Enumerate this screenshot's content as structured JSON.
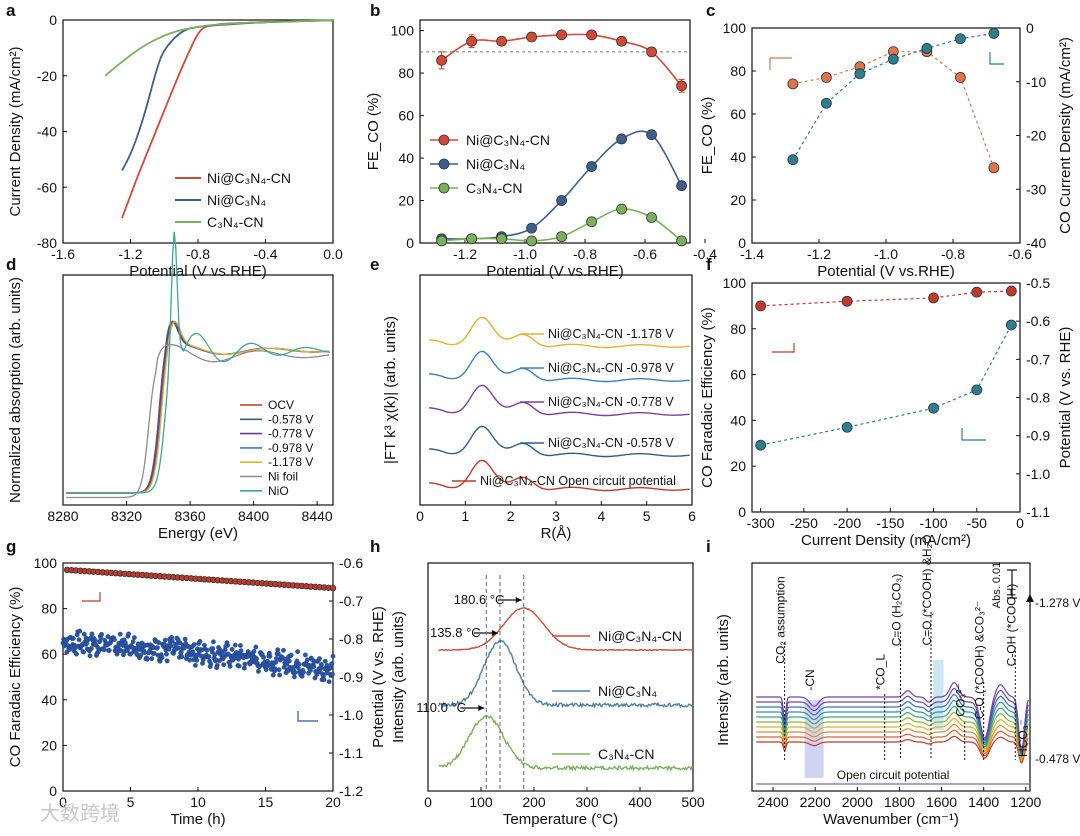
{
  "watermark": "大数跨境",
  "chart_data": [
    {
      "panel": "a",
      "type": "line",
      "xlabel": "Potential (V vs.RHE)",
      "ylabel": "Current Density (mA/cm²)",
      "xlim": [
        -1.6,
        0.0
      ],
      "ylim": [
        -80,
        0
      ],
      "xticks": [
        -1.6,
        -1.2,
        -0.8,
        -0.4,
        0.0
      ],
      "yticks": [
        0,
        -20,
        -40,
        -60,
        -80
      ],
      "xtick_labels": [
        "-1.6",
        "-1.2",
        "-0.8",
        "-0.4",
        "0.0"
      ],
      "ytick_labels": [
        "0",
        "-20",
        "-40",
        "-60",
        "-80"
      ],
      "legend_position": "bottom-right",
      "series": [
        {
          "name": "Ni@C₃N₄-CN",
          "color": "#d04a35",
          "x": [
            -1.25,
            -1.15,
            -1.05,
            -0.95,
            -0.85,
            -0.78,
            -0.7,
            -0.6,
            -0.4,
            -0.2,
            0.0
          ],
          "y": [
            -71,
            -55,
            -40,
            -25,
            -11,
            -3.5,
            -1.8,
            -1.2,
            -0.8,
            -0.4,
            -0.1
          ]
        },
        {
          "name": "Ni@C₃N₄",
          "color": "#3a5f8f",
          "x": [
            -1.25,
            -1.2,
            -1.15,
            -1.1,
            -1.05,
            -1.0,
            -0.9,
            -0.8,
            -0.6,
            -0.4,
            0.0
          ],
          "y": [
            -54,
            -48,
            -40,
            -30,
            -19,
            -11,
            -4.5,
            -2.5,
            -1.5,
            -0.8,
            -0.1
          ]
        },
        {
          "name": "C₃N₄-CN",
          "color": "#7ab05a",
          "x": [
            -1.35,
            -1.25,
            -1.15,
            -1.05,
            -0.95,
            -0.85,
            -0.75,
            -0.6,
            -0.4,
            0.0
          ],
          "y": [
            -20,
            -15,
            -10.5,
            -7,
            -4.5,
            -3,
            -2,
            -1.3,
            -0.7,
            -0.1
          ]
        }
      ]
    },
    {
      "panel": "b",
      "type": "line",
      "xlabel": "Potential (V vs.RHE)",
      "ylabel": "FE_CO (%)",
      "xlim": [
        -1.35,
        -0.45
      ],
      "ylim": [
        0,
        105
      ],
      "xticks": [
        -1.2,
        -1.0,
        -0.8,
        -0.6,
        -0.4
      ],
      "yticks": [
        0,
        20,
        40,
        60,
        80,
        100
      ],
      "xtick_labels": [
        "-1.2",
        "-1.0",
        "-0.8",
        "-0.6",
        "-0.4"
      ],
      "ytick_labels": [
        "0",
        "20",
        "40",
        "60",
        "80",
        "100"
      ],
      "reference_line_y": 90,
      "legend_position": "center-left",
      "categories": [
        -1.278,
        -1.178,
        -1.078,
        -0.978,
        -0.878,
        -0.778,
        -0.678,
        -0.578,
        -0.478
      ],
      "series": [
        {
          "name": "Ni@C₃N₄-CN",
          "color": "#d04a35",
          "values": [
            86,
            95,
            95,
            97,
            98,
            98,
            95,
            90,
            74
          ],
          "errors": [
            4,
            3,
            2,
            2,
            1,
            2,
            2,
            2,
            3
          ]
        },
        {
          "name": "Ni@C₃N₄",
          "color": "#3a5f8f",
          "values": [
            2,
            2,
            3,
            7,
            20,
            36,
            49,
            51,
            27
          ],
          "errors": [
            0.5,
            0.5,
            1,
            1,
            2,
            2,
            2,
            2,
            2
          ]
        },
        {
          "name": "C₃N₄-CN",
          "color": "#7ab05a",
          "values": [
            1,
            2,
            2,
            1,
            3,
            10,
            16,
            12,
            1
          ],
          "errors": [
            0.5,
            0.5,
            0.5,
            0.5,
            1,
            1,
            2,
            1,
            0.5
          ]
        }
      ]
    },
    {
      "panel": "c",
      "type": "scatter",
      "xlabel": "Potential (V vs.RHE)",
      "ylabel": "FE_CO (%)",
      "ylabel_right": "CO Current Density (mA/cm²)",
      "xlim": [
        -1.4,
        -0.6
      ],
      "ylim": [
        0,
        100
      ],
      "ylim_right": [
        -40,
        0
      ],
      "xticks": [
        -1.4,
        -1.2,
        -1.0,
        -0.8,
        -0.6
      ],
      "yticks": [
        0,
        20,
        40,
        60,
        80,
        100
      ],
      "yticks_right": [
        0,
        -10,
        -20,
        -30,
        -40
      ],
      "xtick_labels": [
        "-1.4",
        "-1.2",
        "-1.0",
        "-0.8",
        "-0.6"
      ],
      "ytick_labels": [
        "0",
        "20",
        "40",
        "60",
        "80",
        "100"
      ],
      "ytick_labels_right": [
        "0",
        "-10",
        "-20",
        "-30",
        "-40"
      ],
      "series": [
        {
          "name": "FE_CO",
          "axis": "left",
          "color": "#e0744e",
          "x": [
            -1.278,
            -1.178,
            -1.078,
            -0.978,
            -0.878,
            -0.778,
            -0.678
          ],
          "y": [
            74,
            77,
            82,
            89,
            89,
            77,
            35
          ]
        },
        {
          "name": "CO Current Density",
          "axis": "right",
          "color": "#2d7f8f",
          "x": [
            -1.278,
            -1.178,
            -1.078,
            -0.978,
            -0.878,
            -0.778,
            -0.678
          ],
          "y": [
            -24.5,
            -14,
            -8.5,
            -5.8,
            -3.8,
            -2,
            -1
          ]
        }
      ]
    },
    {
      "panel": "d",
      "type": "line",
      "xlabel": "Energy (eV)",
      "ylabel": "Normalized absorption (arb. units)",
      "xlim": [
        8280,
        8450
      ],
      "xticks": [
        8280,
        8320,
        8360,
        8400,
        8440
      ],
      "xtick_labels": [
        "8280",
        "8320",
        "8360",
        "8400",
        "8440"
      ],
      "legend_position": "bottom-right",
      "series": [
        {
          "name": "OCV",
          "color": "#c0392b"
        },
        {
          "name": "-0.578 V",
          "color": "#2e5d8c"
        },
        {
          "name": "-0.778 V",
          "color": "#6a3d9a"
        },
        {
          "name": "-0.978 V",
          "color": "#4a74b8"
        },
        {
          "name": "-1.178 V",
          "color": "#e6b22e"
        },
        {
          "name": "Ni foil",
          "color": "#8c8c8c"
        },
        {
          "name": "NiO",
          "color": "#3aa6a0"
        }
      ]
    },
    {
      "panel": "e",
      "type": "line",
      "xlabel": "R(Å)",
      "ylabel": "|FT k³ χ(k)| (arb. units)",
      "xlim": [
        0,
        6
      ],
      "xticks": [
        0,
        1,
        2,
        3,
        4,
        5,
        6
      ],
      "xtick_labels": [
        "0",
        "1",
        "2",
        "3",
        "4",
        "5",
        "6"
      ],
      "series": [
        {
          "name": "Ni@C₃N₄-CN  -1.178 V",
          "color": "#e6b22e"
        },
        {
          "name": "Ni@C₃N₄-CN  -0.978 V",
          "color": "#3f7fbf"
        },
        {
          "name": "Ni@C₃N₄-CN  -0.778 V",
          "color": "#7b3f9e"
        },
        {
          "name": "Ni@C₃N₄-CN  -0.578 V",
          "color": "#2e5d8c"
        },
        {
          "name": "Ni@C₃N₄-CN  Open circuit potential",
          "color": "#c0392b"
        }
      ]
    },
    {
      "panel": "f",
      "type": "scatter",
      "xlabel": "Current Density (mA/cm²)",
      "ylabel": "CO Faradaic Efficiency (%)",
      "ylabel_right": "Potential (V vs. RHE)",
      "xlim": [
        -310,
        0
      ],
      "ylim": [
        0,
        100
      ],
      "ylim_right": [
        -1.1,
        -0.5
      ],
      "xticks": [
        -300,
        -250,
        -200,
        -150,
        -100,
        -50,
        0
      ],
      "yticks": [
        0,
        20,
        40,
        60,
        80,
        100
      ],
      "yticks_right": [
        -0.5,
        -0.6,
        -0.7,
        -0.8,
        -0.9,
        -1.0,
        -1.1
      ],
      "xtick_labels": [
        "-300",
        "-250",
        "-200",
        "-150",
        "-100",
        "-50",
        "0"
      ],
      "ytick_labels": [
        "0",
        "20",
        "40",
        "60",
        "80",
        "100"
      ],
      "ytick_labels_right": [
        "-0.5",
        "-0.6",
        "-0.7",
        "-0.8",
        "-0.9",
        "-1.0",
        "-1.1"
      ],
      "series": [
        {
          "name": "CO Faradaic Efficiency",
          "axis": "left",
          "color": "#c0392b",
          "x": [
            -300,
            -200,
            -100,
            -50,
            -10
          ],
          "y": [
            90,
            92,
            93.5,
            96,
            96.5
          ]
        },
        {
          "name": "Potential",
          "axis": "right",
          "color": "#2d7f8f",
          "x": [
            -300,
            -200,
            -100,
            -50,
            -10
          ],
          "y": [
            -0.925,
            -0.878,
            -0.828,
            -0.78,
            -0.61
          ]
        }
      ]
    },
    {
      "panel": "g",
      "type": "scatter",
      "xlabel": "Time (h)",
      "ylabel": "CO Faradaic Efficiency (%)",
      "ylabel_right": "Potential (V vs. RHE)",
      "xlim": [
        0,
        20
      ],
      "ylim": [
        0,
        100
      ],
      "ylim_right": [
        -1.2,
        -0.6
      ],
      "xticks": [
        0,
        5,
        10,
        15,
        20
      ],
      "yticks": [
        0,
        20,
        40,
        60,
        80,
        100
      ],
      "yticks_right": [
        -0.6,
        -0.7,
        -0.8,
        -0.9,
        -1.0,
        -1.1,
        -1.2
      ],
      "xtick_labels": [
        "0",
        "5",
        "10",
        "15",
        "20"
      ],
      "ytick_labels": [
        "0",
        "20",
        "40",
        "60",
        "80",
        "100"
      ],
      "ytick_labels_right": [
        "-0.6",
        "-0.7",
        "-0.8",
        "-0.9",
        "-1.0",
        "-1.1",
        "-1.2"
      ],
      "series": [
        {
          "name": "CO Faradaic Efficiency",
          "axis": "left",
          "color": "#c0392b",
          "x_start": 0.3,
          "x_end": 20,
          "y_start": 97,
          "y_end": 89
        },
        {
          "name": "Potential",
          "axis": "right",
          "color": "#2a56a8",
          "x_start": 0,
          "x_end": 20,
          "y_start": -0.81,
          "y_end": -0.88
        }
      ]
    },
    {
      "panel": "h",
      "type": "line",
      "xlabel": "Temperature (°C)",
      "ylabel": "Intensity (arb. units)",
      "xlim": [
        0,
        500
      ],
      "xticks": [
        0,
        100,
        200,
        300,
        400,
        500
      ],
      "xtick_labels": [
        "0",
        "100",
        "200",
        "300",
        "400",
        "500"
      ],
      "series": [
        {
          "name": "Ni@C₃N₄-CN",
          "color": "#d04a35",
          "peak": 180.6,
          "peak_label": "180.6 °C"
        },
        {
          "name": "Ni@C₃N₄",
          "color": "#4f7fa6",
          "peak": 135.8,
          "peak_label": "135.8 °C"
        },
        {
          "name": "C₃N₄-CN",
          "color": "#7ab05a",
          "peak": 110.0,
          "peak_label": "110.0 °C"
        }
      ],
      "vlines": [
        110.0,
        135.8,
        180.6
      ]
    },
    {
      "panel": "i",
      "type": "line",
      "xlabel": "Wavenumber (cm⁻¹)",
      "ylabel": "Intensity (arb. units)",
      "xlim": [
        2500,
        1180
      ],
      "xticks": [
        2400,
        2200,
        2000,
        1800,
        1600,
        1400,
        1200
      ],
      "xtick_labels": [
        "2400",
        "2200",
        "2000",
        "1800",
        "1600",
        "1400",
        "1200"
      ],
      "scale_label": "Abs. 0.01",
      "top_label": "-1.278 V",
      "bottom_label": "-0.478 V",
      "baseline_label": "Open circuit potential",
      "annotations": [
        "CO₂ assumption",
        "-CN",
        "*CO_L",
        "C=O (H₂CO₃)",
        "C=O (*COOH) &H₂O",
        "CO₃²⁻",
        "C-O (*COOH) &CO₃²⁻",
        "C-OH (*COOH)",
        "HCO₃⁻"
      ]
    }
  ],
  "panel_letters": [
    "a",
    "b",
    "c",
    "d",
    "e",
    "f",
    "g",
    "h",
    "i"
  ]
}
